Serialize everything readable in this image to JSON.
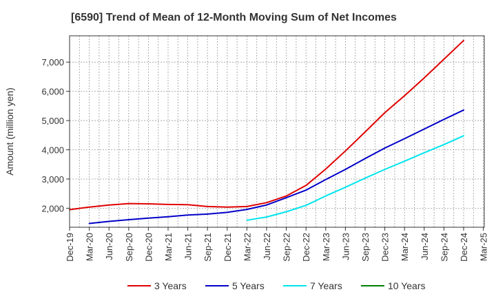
{
  "chart_data": {
    "type": "line",
    "title": "[6590]  Trend of Mean of 12-Month Moving Sum of Net Incomes",
    "xlabel": "",
    "ylabel": "Amount (million yen)",
    "categories": [
      "Dec-19",
      "Mar-20",
      "Jun-20",
      "Sep-20",
      "Dec-20",
      "Mar-21",
      "Jun-21",
      "Sep-21",
      "Dec-21",
      "Mar-22",
      "Jun-22",
      "Sep-22",
      "Dec-22",
      "Mar-23",
      "Jun-23",
      "Sep-23",
      "Dec-23",
      "Mar-24",
      "Jun-24",
      "Sep-24",
      "Dec-24",
      "Mar-25"
    ],
    "yticks": [
      2000,
      3000,
      4000,
      5000,
      6000,
      7000
    ],
    "ytick_labels": [
      "2,000",
      "3,000",
      "4,000",
      "5,000",
      "6,000",
      "7,000"
    ],
    "ylim": [
      1350,
      7900
    ],
    "grid": true,
    "legend_position": "bottom",
    "series": [
      {
        "name": "3 Years",
        "color": "#e00000",
        "values": [
          1950,
          2040,
          2110,
          2160,
          2150,
          2130,
          2120,
          2060,
          2040,
          2060,
          2190,
          2420,
          2780,
          3340,
          3960,
          4610,
          5270,
          5850,
          6460,
          7100,
          7740,
          null
        ]
      },
      {
        "name": "5 Years",
        "color": "#0000c8",
        "values": [
          null,
          1480,
          1550,
          1610,
          1660,
          1710,
          1770,
          1800,
          1860,
          1960,
          2110,
          2360,
          2620,
          2980,
          3330,
          3700,
          4060,
          4380,
          4710,
          5040,
          5360,
          null
        ]
      },
      {
        "name": "7 Years",
        "color": "#00e5ee",
        "values": [
          null,
          null,
          null,
          null,
          null,
          null,
          null,
          null,
          null,
          1590,
          1700,
          1880,
          2100,
          2420,
          2720,
          3030,
          3330,
          3610,
          3900,
          4180,
          4480,
          null
        ]
      },
      {
        "name": "10 Years",
        "color": "#008000",
        "values": [
          null,
          null,
          null,
          null,
          null,
          null,
          null,
          null,
          null,
          null,
          null,
          null,
          null,
          null,
          null,
          null,
          null,
          null,
          null,
          null,
          null,
          null
        ]
      }
    ]
  }
}
